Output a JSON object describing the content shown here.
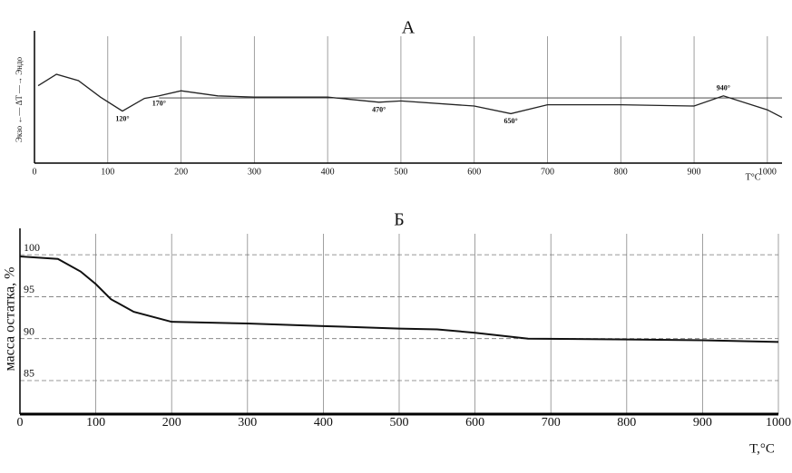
{
  "chart_data": [
    {
      "type": "line",
      "title": "А",
      "y_label": "Экзо ←— ΔT —→ Эндо",
      "x_label": "T°C",
      "x": [
        5,
        30,
        60,
        90,
        120,
        150,
        170,
        200,
        250,
        300,
        400,
        470,
        500,
        600,
        650,
        700,
        800,
        900,
        940,
        1000,
        1020
      ],
      "series": [
        {
          "color": "#222",
          "values": [
            6.1,
            7.0,
            6.5,
            5.2,
            4.1,
            5.1,
            5.3,
            5.7,
            5.3,
            5.2,
            5.2,
            4.8,
            4.9,
            4.5,
            3.9,
            4.6,
            4.6,
            4.5,
            5.3,
            4.2,
            3.6
          ]
        }
      ],
      "reference_line": 5.14,
      "annotations": [
        {
          "value": 120,
          "label": "120°"
        },
        {
          "value": 170,
          "label": "170°"
        },
        {
          "value": 470,
          "label": "470°"
        },
        {
          "value": 650,
          "label": "650°"
        },
        {
          "value": 940,
          "label": "940°"
        }
      ],
      "xlim": [
        0,
        1020
      ],
      "ylim": [
        0,
        10
      ],
      "xticks": [
        0,
        100,
        200,
        300,
        400,
        500,
        600,
        700,
        800,
        900,
        1000
      ],
      "grid": true
    },
    {
      "type": "line",
      "title": "Б",
      "y_label": "масса остатка, %",
      "x_label": "T,°C",
      "x": [
        0,
        50,
        80,
        100,
        120,
        150,
        200,
        300,
        400,
        500,
        550,
        600,
        670,
        800,
        900,
        1000
      ],
      "series": [
        {
          "color": "#111",
          "values": [
            99.8,
            99.5,
            98,
            96.5,
            94.7,
            93.2,
            92.0,
            91.8,
            91.5,
            91.2,
            91.1,
            90.7,
            90.0,
            89.9,
            89.8,
            89.6
          ]
        }
      ],
      "xlim": [
        0,
        1000
      ],
      "ylim": [
        81,
        102.5
      ],
      "xticks": [
        0,
        100,
        200,
        300,
        400,
        500,
        600,
        700,
        800,
        900,
        1000
      ],
      "yticks": [
        85,
        90,
        95,
        100
      ],
      "grid": true
    }
  ]
}
